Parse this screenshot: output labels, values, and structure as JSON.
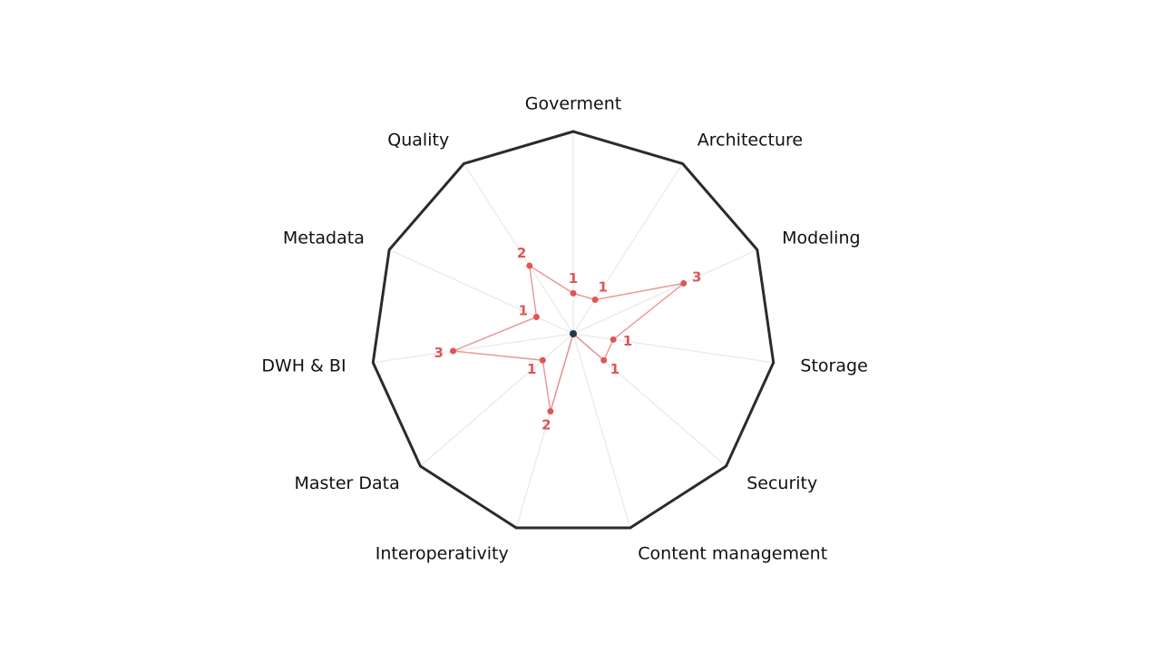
{
  "chart_data": {
    "type": "radar",
    "categories": [
      "Goverment",
      "Architecture",
      "Modeling",
      "Storage",
      "Security",
      "Content management",
      "Interoperativity",
      "Master Data",
      "DWH & BI",
      "Metadata",
      "Quality"
    ],
    "series": [
      {
        "color": "#e05555",
        "values": [
          1,
          1,
          3,
          1,
          1,
          0,
          2,
          1,
          3,
          1,
          2
        ]
      }
    ],
    "rlim": [
      0,
      5
    ],
    "grid": true
  }
}
